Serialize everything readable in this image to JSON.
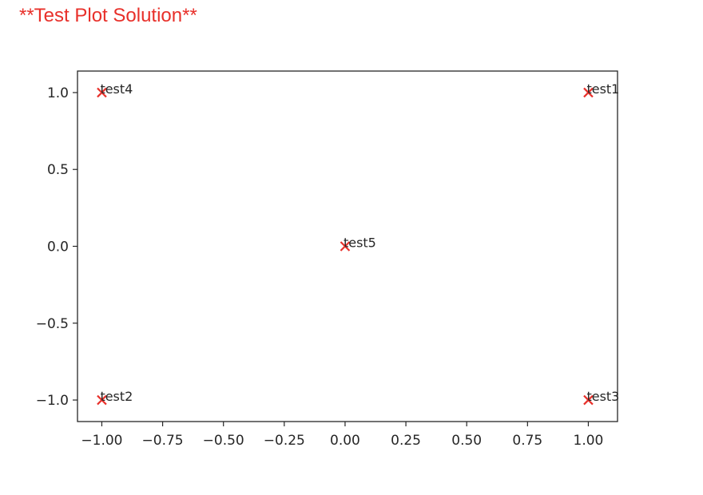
{
  "page": {
    "title": "**Test Plot Solution**",
    "title_color": "#e8302a"
  },
  "chart_data": {
    "type": "scatter",
    "title": "",
    "xlabel": "",
    "ylabel": "",
    "xlim": [
      -1.1,
      1.12
    ],
    "ylim": [
      -1.14,
      1.14
    ],
    "grid": false,
    "marker": "x",
    "marker_color": "#e8302a",
    "xticks": [
      -1.0,
      -0.75,
      -0.5,
      -0.25,
      0.0,
      0.25,
      0.5,
      0.75,
      1.0
    ],
    "xtick_labels": [
      "−1.00",
      "−0.75",
      "−0.50",
      "−0.25",
      "0.00",
      "0.25",
      "0.50",
      "0.75",
      "1.00"
    ],
    "yticks": [
      1.0,
      0.5,
      0.0,
      -0.5,
      -1.0
    ],
    "ytick_labels": [
      "1.0",
      "0.5",
      "0.0",
      "−0.5",
      "−1.0"
    ],
    "points": [
      {
        "x": 1,
        "y": 1,
        "label": "test1"
      },
      {
        "x": -1,
        "y": -1,
        "label": "test2"
      },
      {
        "x": 1,
        "y": -1,
        "label": "test3"
      },
      {
        "x": -1,
        "y": 1,
        "label": "test4"
      },
      {
        "x": 0,
        "y": 0,
        "label": "test5"
      }
    ]
  }
}
